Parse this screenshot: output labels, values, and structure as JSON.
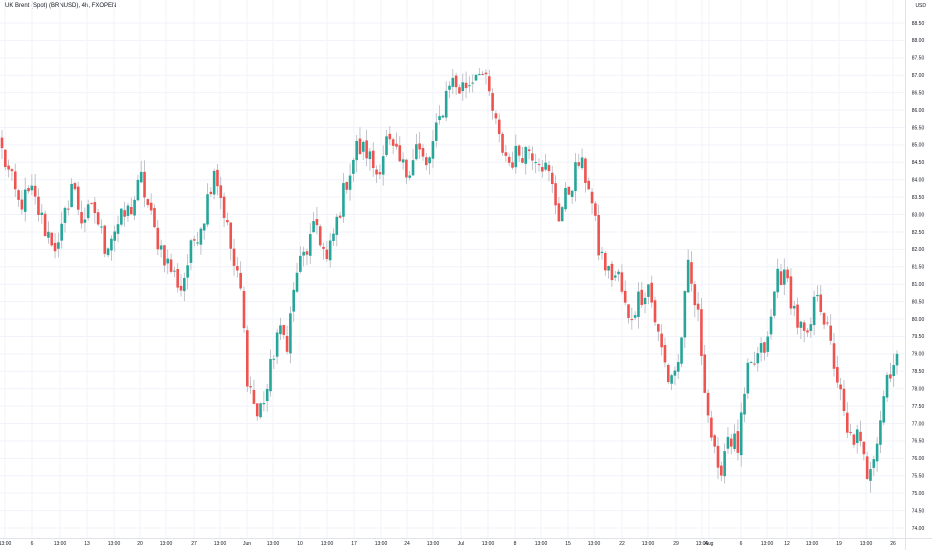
{
  "chart_data": {
    "type": "candlestick",
    "title": "UK Brent (Spot) (BRNUSD), 4h, FXOPEN",
    "currency": "USD",
    "ylim": [
      74.0,
      88.5
    ],
    "y_ticks": [
      "88.50",
      "88.00",
      "87.50",
      "87.00",
      "86.50",
      "86.00",
      "85.50",
      "85.00",
      "84.50",
      "84.00",
      "83.50",
      "83.00",
      "82.50",
      "82.00",
      "81.50",
      "81.00",
      "80.50",
      "80.00",
      "79.50",
      "79.00",
      "78.50",
      "78.00",
      "77.50",
      "77.00",
      "76.50",
      "76.00",
      "75.50",
      "75.00",
      "74.50",
      "74.00"
    ],
    "x_ticks": [
      "13:00",
      "6",
      "13:00",
      "13",
      "13:00",
      "20",
      "13:00",
      "27",
      "13:00",
      "Jun",
      "13:00",
      "10",
      "13:00",
      "17",
      "13:00",
      "24",
      "13:00",
      "Jul",
      "13:00",
      "8",
      "13:00",
      "15",
      "13:00",
      "22",
      "13:00",
      "29",
      "13:00",
      "Aug",
      "6",
      "13:00",
      "12",
      "13:00",
      "19",
      "13:00",
      "26"
    ],
    "up_color": "#26a69a",
    "down_color": "#ef5350",
    "wick_color": "#b2b5be",
    "grid": true,
    "anchors": [
      [
        0,
        84.8
      ],
      [
        5,
        83.3
      ],
      [
        9,
        83.6
      ],
      [
        13,
        82.6
      ],
      [
        17,
        82.0
      ],
      [
        21,
        83.9
      ],
      [
        24,
        82.9
      ],
      [
        28,
        83.1
      ],
      [
        31,
        82.1
      ],
      [
        34,
        82.6
      ],
      [
        39,
        83.2
      ],
      [
        42,
        84.0
      ],
      [
        46,
        82.5
      ],
      [
        50,
        81.6
      ],
      [
        54,
        80.9
      ],
      [
        58,
        82.3
      ],
      [
        61,
        83.0
      ],
      [
        64,
        84.4
      ],
      [
        67,
        83.1
      ],
      [
        70,
        81.5
      ],
      [
        72,
        80.8
      ],
      [
        74,
        78.4
      ],
      [
        77,
        77.2
      ],
      [
        80,
        78.0
      ],
      [
        83,
        79.6
      ],
      [
        86,
        79.4
      ],
      [
        89,
        81.4
      ],
      [
        92,
        82.0
      ],
      [
        95,
        82.7
      ],
      [
        98,
        81.6
      ],
      [
        101,
        82.8
      ],
      [
        104,
        84.0
      ],
      [
        107,
        84.9
      ],
      [
        110,
        84.8
      ],
      [
        113,
        84.2
      ],
      [
        116,
        85.1
      ],
      [
        119,
        84.6
      ],
      [
        122,
        84.2
      ],
      [
        125,
        85.0
      ],
      [
        128,
        84.3
      ],
      [
        132,
        85.7
      ],
      [
        135,
        86.9
      ],
      [
        138,
        86.6
      ],
      [
        141,
        86.8
      ],
      [
        144,
        87.3
      ],
      [
        147,
        86.4
      ],
      [
        150,
        85.1
      ],
      [
        153,
        84.5
      ],
      [
        156,
        84.8
      ],
      [
        159,
        84.9
      ],
      [
        162,
        84.7
      ],
      [
        165,
        84.1
      ],
      [
        168,
        83.0
      ],
      [
        171,
        83.7
      ],
      [
        174,
        84.5
      ],
      [
        177,
        83.9
      ],
      [
        180,
        82.0
      ],
      [
        183,
        81.3
      ],
      [
        186,
        81.2
      ],
      [
        189,
        79.9
      ],
      [
        192,
        80.6
      ],
      [
        195,
        81.0
      ],
      [
        198,
        79.5
      ],
      [
        201,
        78.3
      ],
      [
        204,
        78.7
      ],
      [
        207,
        81.4
      ],
      [
        210,
        80.0
      ],
      [
        213,
        77.3
      ],
      [
        216,
        75.4
      ],
      [
        219,
        76.7
      ],
      [
        222,
        76.3
      ],
      [
        225,
        78.4
      ],
      [
        228,
        78.9
      ],
      [
        231,
        79.3
      ],
      [
        234,
        81.4
      ],
      [
        237,
        81.0
      ],
      [
        240,
        79.9
      ],
      [
        243,
        79.3
      ],
      [
        246,
        80.9
      ],
      [
        249,
        79.6
      ],
      [
        252,
        78.3
      ],
      [
        255,
        76.6
      ],
      [
        258,
        76.6
      ],
      [
        261,
        75.6
      ],
      [
        264,
        76.6
      ],
      [
        267,
        78.4
      ],
      [
        270,
        79.0
      ]
    ]
  }
}
